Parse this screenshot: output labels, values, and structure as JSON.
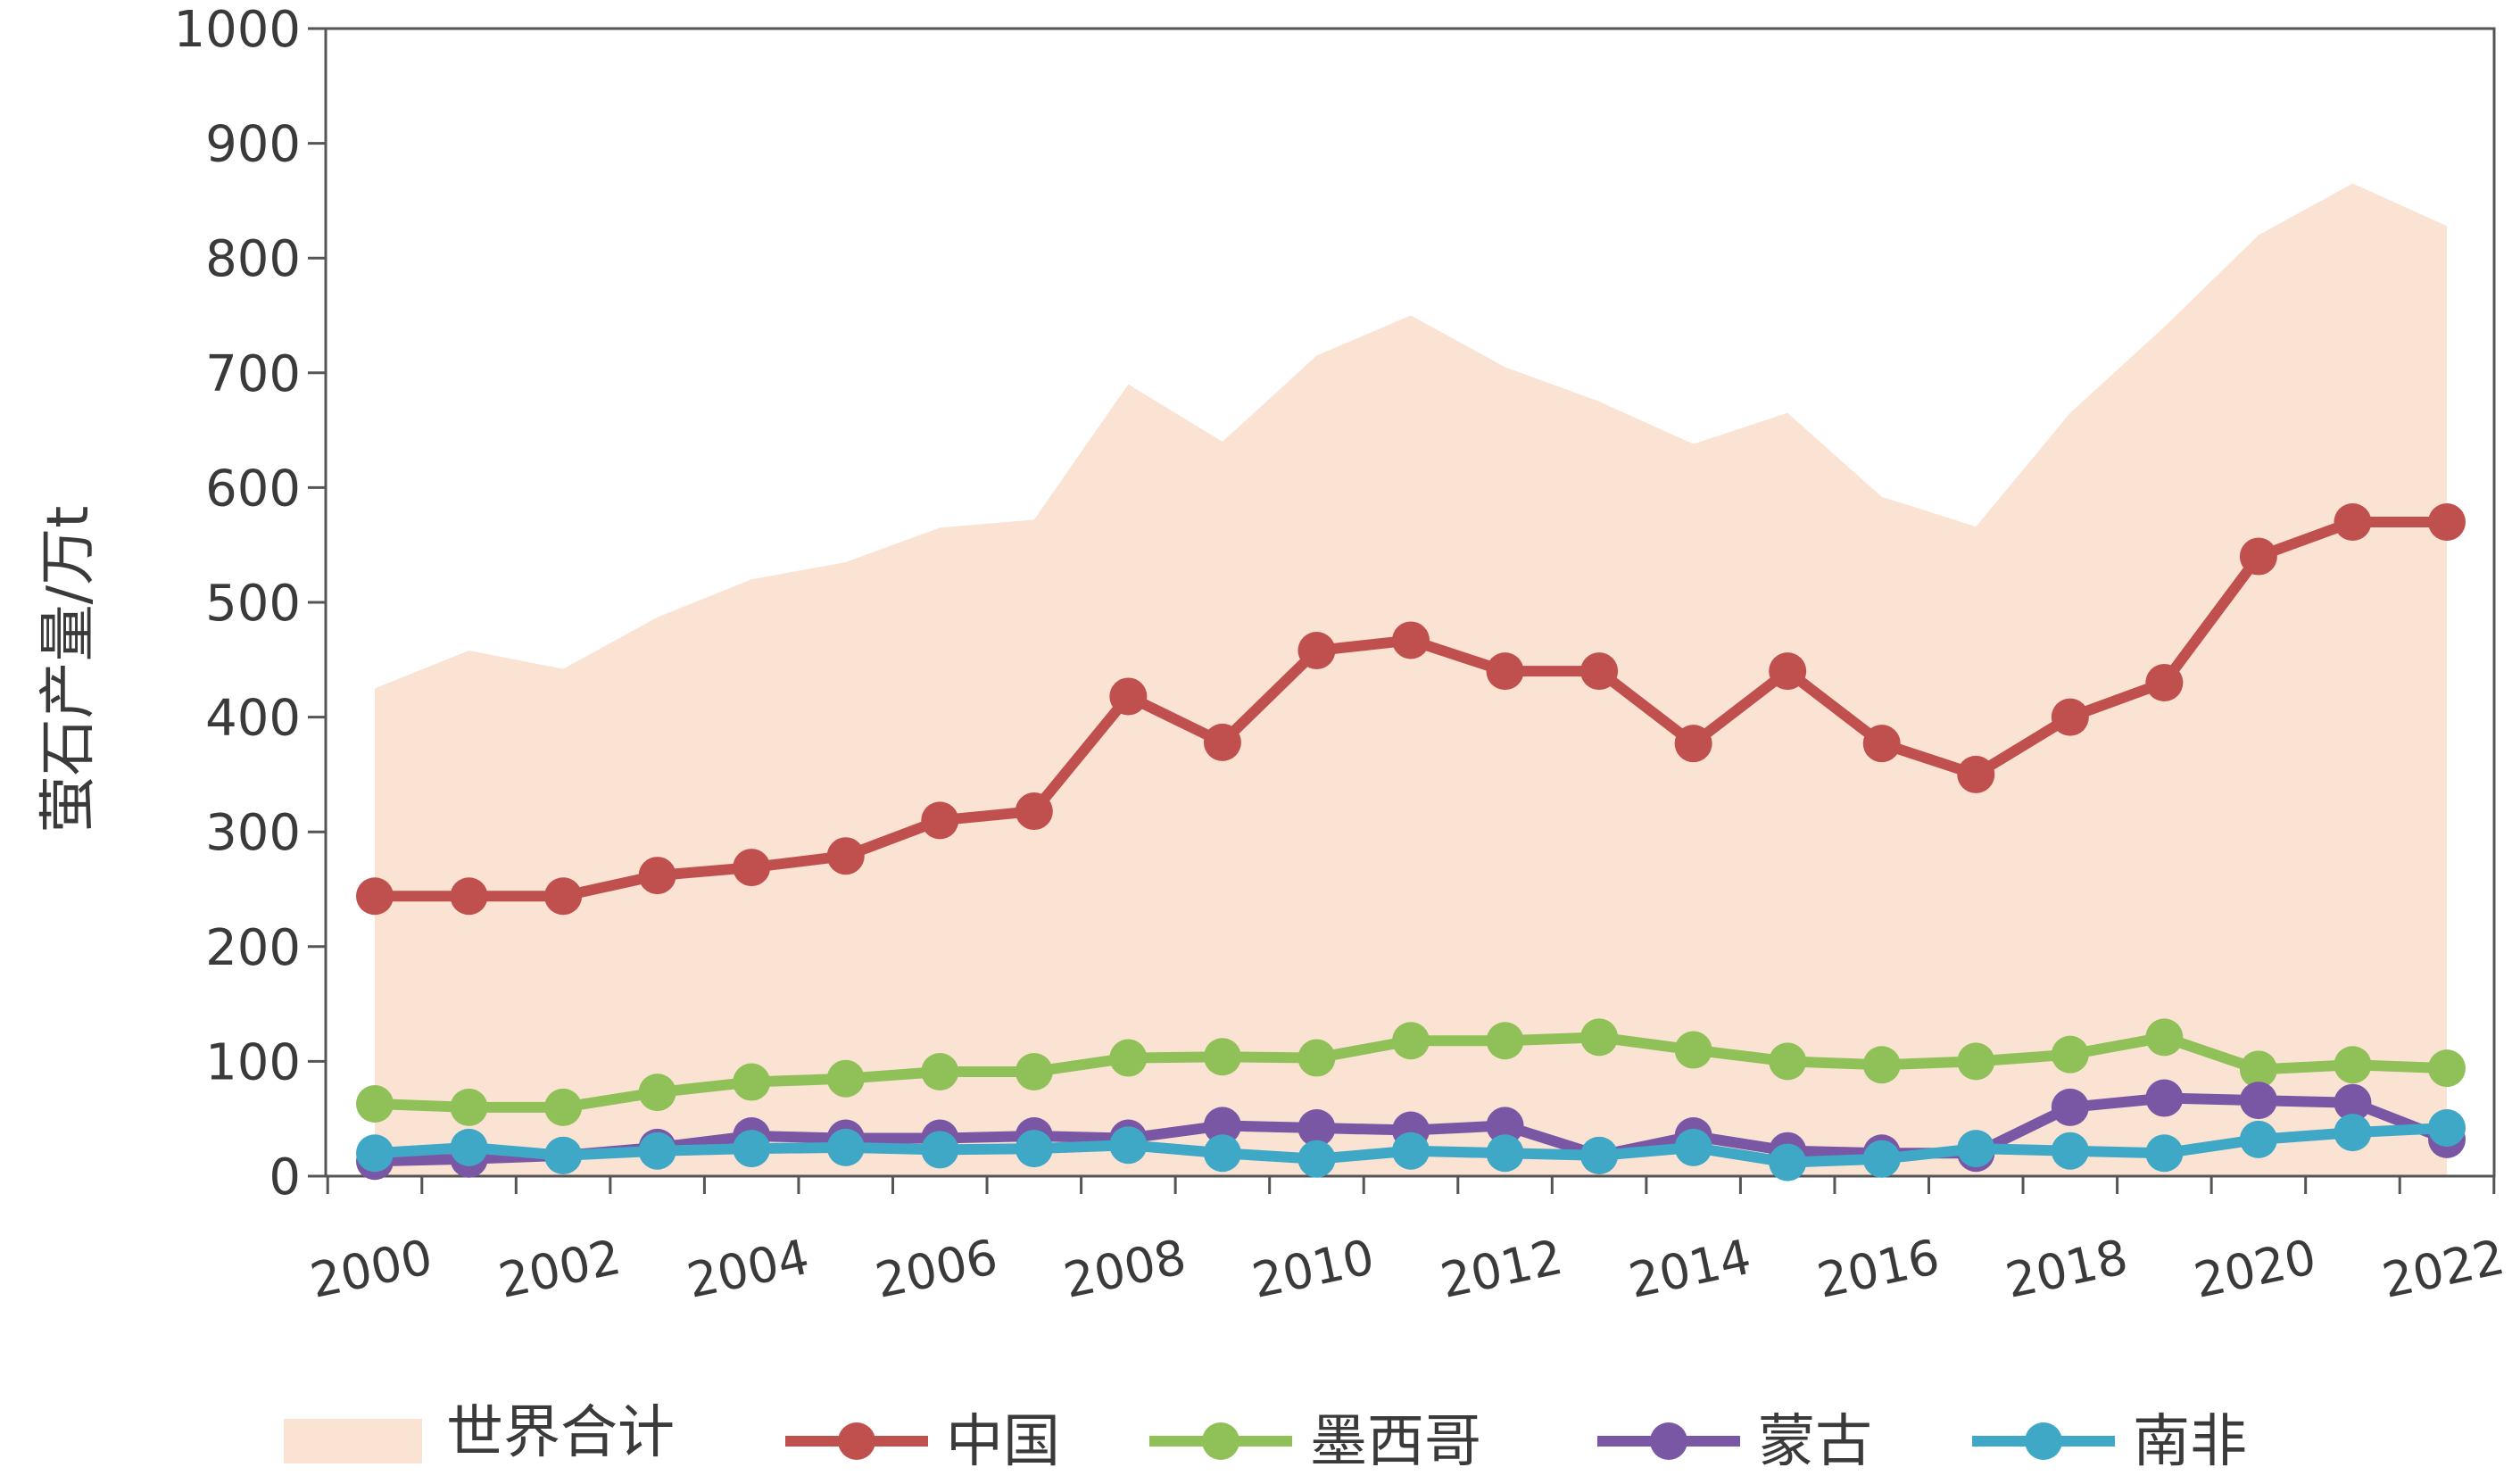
{
  "chart_data": {
    "type": "line",
    "ylabel": "萤石产量/万t",
    "ylim": [
      0,
      1000
    ],
    "yticks": [
      0,
      100,
      200,
      300,
      400,
      500,
      600,
      700,
      800,
      900,
      1000
    ],
    "x": [
      2000,
      2001,
      2002,
      2003,
      2004,
      2005,
      2006,
      2007,
      2008,
      2009,
      2010,
      2011,
      2012,
      2013,
      2014,
      2015,
      2016,
      2017,
      2018,
      2019,
      2020,
      2021,
      2022
    ],
    "xtick_labels": [
      "2000",
      "2002",
      "2004",
      "2006",
      "2008",
      "2010",
      "2012",
      "2014",
      "2016",
      "2018",
      "2020",
      "2022"
    ],
    "legend_position": "bottom",
    "grid": false,
    "area": {
      "name": "世界合计",
      "color": "#fbe3d3",
      "values": [
        425,
        458,
        442,
        487,
        520,
        535,
        565,
        572,
        690,
        640,
        715,
        750,
        705,
        675,
        638,
        665,
        592,
        566,
        665,
        740,
        820,
        865,
        828
      ]
    },
    "series": [
      {
        "name": "中国",
        "color": "#c0504d",
        "values": [
          244,
          244,
          244,
          262,
          269,
          279,
          310,
          318,
          418,
          378,
          458,
          467,
          440,
          440,
          377,
          440,
          377,
          350,
          400,
          430,
          540,
          570,
          570
        ]
      },
      {
        "name": "墨西哥",
        "color": "#8fc158",
        "values": [
          63,
          60,
          60,
          73,
          82,
          85,
          91,
          91,
          103,
          104,
          103,
          118,
          118,
          121,
          110,
          100,
          97,
          100,
          106,
          121,
          93,
          97,
          94
        ]
      },
      {
        "name": "蒙古",
        "color": "#7a57a5",
        "values": [
          13,
          15,
          18,
          25,
          35,
          33,
          33,
          35,
          33,
          44,
          42,
          40,
          44,
          18,
          35,
          22,
          20,
          20,
          60,
          68,
          66,
          64,
          32
        ]
      },
      {
        "name": "南非",
        "color": "#3fa8c6",
        "values": [
          20,
          25,
          18,
          22,
          24,
          25,
          23,
          24,
          27,
          20,
          15,
          22,
          20,
          18,
          25,
          12,
          15,
          24,
          22,
          20,
          32,
          38,
          42
        ]
      }
    ]
  }
}
